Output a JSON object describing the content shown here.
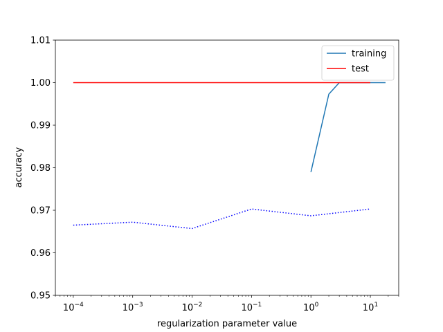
{
  "chart_data": {
    "type": "line",
    "title": "",
    "xlabel": "regularization parameter value",
    "ylabel": "accuracy",
    "xscale": "log",
    "xlim": [
      5e-05,
      30
    ],
    "ylim": [
      0.95,
      1.01
    ],
    "x_ticks": [
      {
        "value": 0.0001,
        "base": "10",
        "exp": "−4"
      },
      {
        "value": 0.001,
        "base": "10",
        "exp": "−3"
      },
      {
        "value": 0.01,
        "base": "10",
        "exp": "−2"
      },
      {
        "value": 0.1,
        "base": "10",
        "exp": "−1"
      },
      {
        "value": 1,
        "base": "10",
        "exp": "0"
      },
      {
        "value": 10,
        "base": "10",
        "exp": "1"
      }
    ],
    "y_ticks": [
      {
        "value": 0.95,
        "label": "0.95"
      },
      {
        "value": 0.96,
        "label": "0.96"
      },
      {
        "value": 0.97,
        "label": "0.97"
      },
      {
        "value": 0.98,
        "label": "0.98"
      },
      {
        "value": 0.99,
        "label": "0.99"
      },
      {
        "value": 1.0,
        "label": "1.00"
      },
      {
        "value": 1.01,
        "label": "1.01"
      }
    ],
    "grid": false,
    "legend_position": "top-right",
    "series": [
      {
        "name": "training",
        "color": "#1f77b4",
        "dash": "solid",
        "points": [
          [
            1,
            0.979
          ],
          [
            2,
            0.9973
          ],
          [
            3,
            1.0
          ],
          [
            10,
            1.0
          ],
          [
            18,
            1.0
          ]
        ]
      },
      {
        "name": "test",
        "color": "#ff0000",
        "dash": "solid",
        "points": [
          [
            0.0001,
            1.0
          ],
          [
            0.001,
            1.0
          ],
          [
            0.01,
            1.0
          ],
          [
            0.1,
            1.0
          ],
          [
            1,
            1.0
          ],
          [
            10,
            1.0
          ]
        ]
      },
      {
        "color": "#0000ff",
        "dash": "dotted",
        "points": [
          [
            0.0001,
            0.9665
          ],
          [
            0.001,
            0.9672
          ],
          [
            0.01,
            0.9657
          ],
          [
            0.1,
            0.9703
          ],
          [
            1,
            0.9687
          ],
          [
            10,
            0.9703
          ]
        ]
      }
    ]
  }
}
